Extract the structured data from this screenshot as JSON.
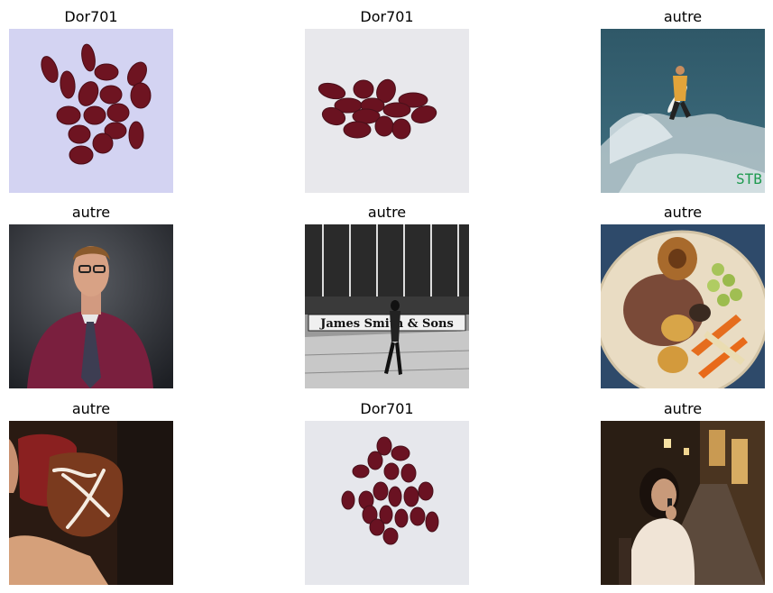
{
  "grid": {
    "panels": [
      {
        "title": "Dor701",
        "image": "kidney-beans-scattered-lavender"
      },
      {
        "title": "Dor701",
        "image": "kidney-beans-cluster-white"
      },
      {
        "title": "autre",
        "image": "surfer-on-wave"
      },
      {
        "title": "autre",
        "image": "man-portrait-purple-shirt-tie"
      },
      {
        "title": "autre",
        "image": "street-scene-james-smith-sons"
      },
      {
        "title": "autre",
        "image": "plate-roast-dinner"
      },
      {
        "title": "autre",
        "image": "hands-holding-decorated-jar"
      },
      {
        "title": "Dor701",
        "image": "kidney-beans-scattered-white"
      },
      {
        "title": "autre",
        "image": "woman-on-phone-night-street"
      }
    ],
    "sign_text": "James Smith & Sons",
    "watermark_text": "STB"
  }
}
